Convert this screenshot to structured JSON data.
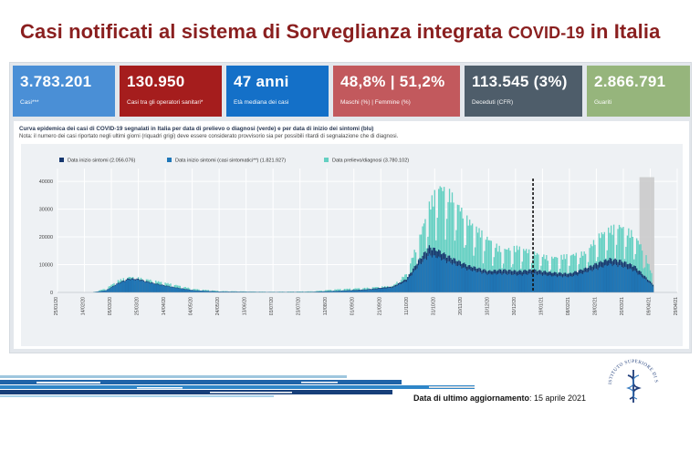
{
  "header": {
    "title_main": "Casi notificati al sistema di Sorveglianza integrata",
    "title_covid": "COVID-19",
    "title_tail": "in Italia"
  },
  "kpis": [
    {
      "value": "3.783.201",
      "label": "Casi***",
      "color": "#4a8fd6"
    },
    {
      "value": "130.950",
      "label": "Casi tra gli operatori sanitari*",
      "color": "#a51d1d"
    },
    {
      "value": "47 anni",
      "label": "Età mediana dei casi",
      "color": "#1470c8"
    },
    {
      "value": "48,8% | 51,2%",
      "label": "Maschi (%) | Femmine (%)",
      "color": "#c2595d"
    },
    {
      "value": "113.545 (3%)",
      "label": "Deceduti (CFR)",
      "color": "#4e5d6a"
    },
    {
      "value": "2.866.791",
      "label": "Guariti",
      "color": "#96b57c"
    }
  ],
  "notes": {
    "caption": "Curva epidemica dei casi di COVID-19 segnalati in Italia per data di prelievo o diagnosi (verde) e per data di inizio dei sintomi (blu)",
    "note": "Nota: il numero dei casi riportato negli ultimi giorni (riquadri grigi) deve essere considerato provvisorio sia per possibili ritardi di segnalazione che di diagnosi."
  },
  "footer": {
    "update_label": "Data di ultimo aggiornamento",
    "update_date": ": 15 aprile 2021",
    "seal_text": "ISTITUTO SUPERIORE DI SANITÀ"
  },
  "chart_data": {
    "type": "bar",
    "title": "",
    "xlabel": "",
    "ylabel": "",
    "ylim": [
      0,
      42000
    ],
    "yticks": [
      0,
      10000,
      20000,
      30000,
      40000
    ],
    "x_start": "2020-01-25",
    "x_end": "2021-04-29",
    "x_ticks": [
      "25/01/20",
      "14/02/20",
      "05/03/20",
      "25/03/20",
      "14/04/20",
      "04/05/20",
      "24/05/20",
      "13/06/20",
      "03/07/20",
      "23/07/20",
      "12/08/20",
      "01/09/20",
      "21/09/20",
      "11/10/20",
      "31/10/20",
      "20/11/20",
      "10/12/20",
      "30/12/20",
      "19/01/21",
      "08/02/21",
      "28/02/21",
      "20/03/21",
      "09/04/21",
      "29/04/21"
    ],
    "legend_position": "top",
    "grid": true,
    "provisional_period": [
      "2021-04-01",
      "2021-04-12"
    ],
    "dashed_line_date": "2021-01-12",
    "series": [
      {
        "name": "Data inizio sintomi (2.056.076)",
        "color": "#15366e",
        "kind": "symptom-total",
        "points": [
          [
            "2020-02-20",
            0
          ],
          [
            "2020-03-01",
            800
          ],
          [
            "2020-03-10",
            3500
          ],
          [
            "2020-03-18",
            5200
          ],
          [
            "2020-03-25",
            5000
          ],
          [
            "2020-04-05",
            3500
          ],
          [
            "2020-04-20",
            2000
          ],
          [
            "2020-05-05",
            800
          ],
          [
            "2020-05-25",
            300
          ],
          [
            "2020-07-01",
            150
          ],
          [
            "2020-08-01",
            200
          ],
          [
            "2020-08-20",
            600
          ],
          [
            "2020-09-10",
            1100
          ],
          [
            "2020-09-30",
            2200
          ],
          [
            "2020-10-10",
            5000
          ],
          [
            "2020-10-20",
            12500
          ],
          [
            "2020-10-27",
            17000
          ],
          [
            "2020-11-03",
            15500
          ],
          [
            "2020-11-12",
            13000
          ],
          [
            "2020-11-25",
            10000
          ],
          [
            "2020-12-10",
            8000
          ],
          [
            "2020-12-20",
            8500
          ],
          [
            "2021-01-01",
            8000
          ],
          [
            "2021-01-12",
            8500
          ],
          [
            "2021-01-25",
            7500
          ],
          [
            "2021-02-08",
            7000
          ],
          [
            "2021-02-20",
            9000
          ],
          [
            "2021-03-01",
            11000
          ],
          [
            "2021-03-10",
            12500
          ],
          [
            "2021-03-17",
            12000
          ],
          [
            "2021-03-28",
            10000
          ],
          [
            "2021-04-05",
            6000
          ],
          [
            "2021-04-12",
            2500
          ]
        ]
      },
      {
        "name": "Data inizio sintomi (casi sintomatici**) (1.821.927)",
        "color": "#1f77b8",
        "kind": "symptom-symptomatic",
        "points": [
          [
            "2020-02-20",
            0
          ],
          [
            "2020-03-01",
            700
          ],
          [
            "2020-03-10",
            3200
          ],
          [
            "2020-03-18",
            4800
          ],
          [
            "2020-03-25",
            4600
          ],
          [
            "2020-04-05",
            3200
          ],
          [
            "2020-04-20",
            1800
          ],
          [
            "2020-05-05",
            700
          ],
          [
            "2020-05-25",
            250
          ],
          [
            "2020-07-01",
            120
          ],
          [
            "2020-08-01",
            150
          ],
          [
            "2020-08-20",
            500
          ],
          [
            "2020-09-10",
            900
          ],
          [
            "2020-09-30",
            1800
          ],
          [
            "2020-10-10",
            4200
          ],
          [
            "2020-10-20",
            10500
          ],
          [
            "2020-10-27",
            14000
          ],
          [
            "2020-11-03",
            13000
          ],
          [
            "2020-11-12",
            11000
          ],
          [
            "2020-11-25",
            8500
          ],
          [
            "2020-12-10",
            6800
          ],
          [
            "2020-12-20",
            7000
          ],
          [
            "2021-01-01",
            6500
          ],
          [
            "2021-01-12",
            7000
          ],
          [
            "2021-01-25",
            6200
          ],
          [
            "2021-02-08",
            5800
          ],
          [
            "2021-02-20",
            7500
          ],
          [
            "2021-03-01",
            9000
          ],
          [
            "2021-03-10",
            10500
          ],
          [
            "2021-03-17",
            10000
          ],
          [
            "2021-03-28",
            8200
          ],
          [
            "2021-04-05",
            5000
          ],
          [
            "2021-04-12",
            2000
          ]
        ]
      },
      {
        "name": "Data prelievo/diagnosi (3.780.102)",
        "color": "#64d0c2",
        "kind": "diagnosis",
        "points": [
          [
            "2020-02-20",
            0
          ],
          [
            "2020-03-01",
            1500
          ],
          [
            "2020-03-10",
            4500
          ],
          [
            "2020-03-18",
            5800
          ],
          [
            "2020-03-25",
            5500
          ],
          [
            "2020-04-05",
            4500
          ],
          [
            "2020-04-20",
            3000
          ],
          [
            "2020-05-05",
            1300
          ],
          [
            "2020-05-25",
            500
          ],
          [
            "2020-07-01",
            250
          ],
          [
            "2020-08-01",
            400
          ],
          [
            "2020-08-20",
            1200
          ],
          [
            "2020-09-10",
            1700
          ],
          [
            "2020-09-30",
            2500
          ],
          [
            "2020-10-10",
            7000
          ],
          [
            "2020-10-20",
            21000
          ],
          [
            "2020-10-27",
            33000
          ],
          [
            "2020-11-03",
            40000
          ],
          [
            "2020-11-12",
            37000
          ],
          [
            "2020-11-25",
            27000
          ],
          [
            "2020-12-10",
            20000
          ],
          [
            "2020-12-20",
            16000
          ],
          [
            "2021-01-01",
            17000
          ],
          [
            "2021-01-12",
            15000
          ],
          [
            "2021-01-25",
            13000
          ],
          [
            "2021-02-08",
            14000
          ],
          [
            "2021-02-20",
            15000
          ],
          [
            "2021-03-01",
            21000
          ],
          [
            "2021-03-10",
            24000
          ],
          [
            "2021-03-17",
            25000
          ],
          [
            "2021-03-28",
            22000
          ],
          [
            "2021-04-05",
            15000
          ],
          [
            "2021-04-12",
            4000
          ]
        ]
      }
    ]
  }
}
